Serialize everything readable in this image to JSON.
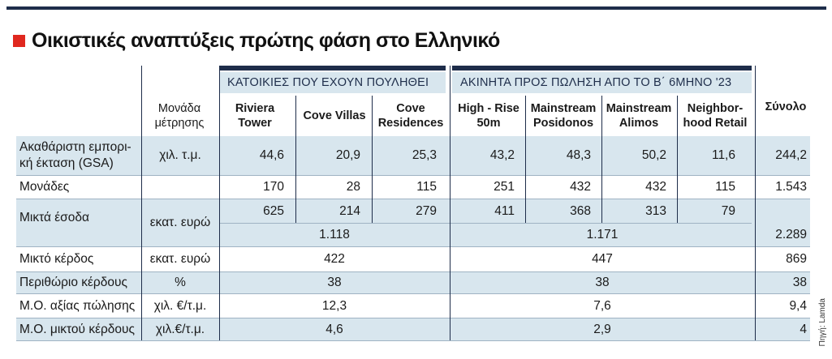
{
  "title": "Οικιστικές αναπτύξεις πρώτης φάση στο Ελληνικό",
  "source": "Πηγή: Lamda",
  "groups": {
    "sold": "ΚΑΤΟΙΚΙΕΣ ΠΟΥ ΕΧΟΥΝ  ΠΟΥΛΗΘΕΙ",
    "for_sale": "ΑΚΙΝΗΤΑ ΠΡΟΣ ΠΩΛΗΣΗ ΑΠΟ ΤΟ Β΄ 6ΜΗΝΟ '23"
  },
  "columns": {
    "unit": "Μονάδα μέτρησης",
    "riviera": "Riviera Tower",
    "cove_villas": "Cove Villas",
    "cove_res": "Cove Residences",
    "high_rise": "High - Rise 50m",
    "ms_posidonos": "Mainstream Posidonos",
    "ms_alimos": "Mainstream Alimos",
    "retail": "Neighbor-hood Retail",
    "total": "Σύνολο"
  },
  "rows": {
    "gsa": {
      "label": "Ακαθάριστη εμπορι-κή έκταση (GSA)",
      "unit": "χιλ. τ.μ.",
      "values": [
        "44,6",
        "20,9",
        "25,3",
        "43,2",
        "48,3",
        "50,2",
        "11,6"
      ],
      "total": "244,2"
    },
    "units": {
      "label": "Μονάδες",
      "unit": "",
      "values": [
        "170",
        "28",
        "115",
        "251",
        "432",
        "432",
        "115"
      ],
      "total": "1.543"
    },
    "revenue": {
      "label": "Μικτά έσοδα",
      "unit": "εκατ. ευρώ",
      "values": [
        "625",
        "214",
        "279",
        "411",
        "368",
        "313",
        "79"
      ],
      "sold_subtotal": "1.118",
      "for_sale_subtotal": "1.171",
      "total": "2.289"
    },
    "gross_profit": {
      "label": "Μικτό κέρδος",
      "unit": "εκατ. ευρώ",
      "sold": "422",
      "for_sale": "447",
      "total": "869"
    },
    "margin": {
      "label": "Περιθώριο κέρδους",
      "unit": "%",
      "sold": "38",
      "for_sale": "38",
      "total": "38"
    },
    "avg_sale": {
      "label": "Μ.Ο. αξίας πώλησης",
      "unit": "χιλ. €/τ.μ.",
      "sold": "12,3",
      "for_sale": "7,6",
      "total": "9,4"
    },
    "avg_profit": {
      "label": "Μ.Ο. μικτού κέρδους",
      "unit": "χιλ.€/τ.μ.",
      "sold": "4,6",
      "for_sale": "2,9",
      "total": "4"
    }
  }
}
